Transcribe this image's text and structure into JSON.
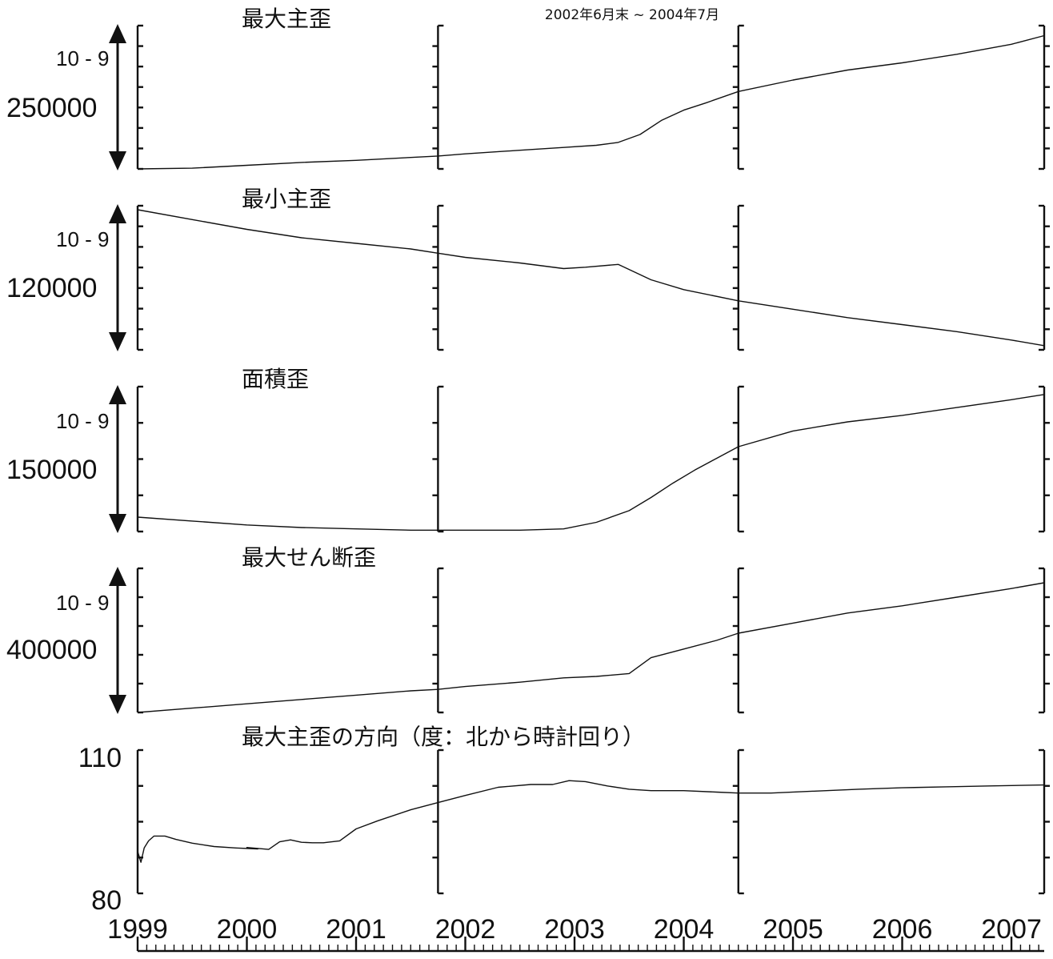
{
  "chart_data": {
    "type": "line",
    "title": "",
    "annotation": "2002年6月末 ~ 2004年7月",
    "x_axis": {
      "tick_labels": [
        "1999",
        "2000",
        "2001",
        "2002",
        "2003",
        "2004",
        "2005",
        "2006",
        "2007"
      ],
      "range": [
        1999.0,
        2007.3
      ]
    },
    "vertical_markers": [
      2001.75,
      2004.5
    ],
    "panels": [
      {
        "title": "最大主歪",
        "unit": "10 - 9",
        "scale_value": "250000",
        "x": [
          1999.0,
          1999.5,
          2000.0,
          2000.5,
          2001.0,
          2001.5,
          2001.75,
          2002.0,
          2002.5,
          2002.9,
          2003.2,
          2003.4,
          2003.6,
          2003.8,
          2004.0,
          2004.2,
          2004.5,
          2005.0,
          2005.5,
          2006.0,
          2006.5,
          2007.0,
          2007.3
        ],
        "values": [
          0.0,
          0.005,
          0.025,
          0.045,
          0.06,
          0.08,
          0.09,
          0.105,
          0.13,
          0.15,
          0.165,
          0.185,
          0.24,
          0.34,
          0.41,
          0.46,
          0.54,
          0.62,
          0.69,
          0.74,
          0.8,
          0.87,
          0.93
        ]
      },
      {
        "title": "最小主歪",
        "unit": "10 - 9",
        "scale_value": "120000",
        "x": [
          1999.0,
          1999.5,
          2000.0,
          2000.5,
          2001.0,
          2001.5,
          2001.75,
          2002.0,
          2002.5,
          2002.9,
          2003.1,
          2003.4,
          2003.7,
          2004.0,
          2004.5,
          2005.0,
          2005.5,
          2006.0,
          2006.5,
          2007.0,
          2007.3
        ],
        "values": [
          0.0,
          -0.07,
          -0.14,
          -0.2,
          -0.24,
          -0.28,
          -0.31,
          -0.34,
          -0.38,
          -0.42,
          -0.41,
          -0.39,
          -0.5,
          -0.57,
          -0.65,
          -0.71,
          -0.77,
          -0.82,
          -0.87,
          -0.93,
          -0.97
        ]
      },
      {
        "title": "面積歪",
        "unit": "10 - 9",
        "scale_value": "150000",
        "x": [
          1999.0,
          1999.5,
          2000.0,
          2000.5,
          2001.0,
          2001.5,
          2002.0,
          2002.5,
          2002.9,
          2003.2,
          2003.5,
          2003.7,
          2003.9,
          2004.1,
          2004.3,
          2004.5,
          2005.0,
          2005.5,
          2006.0,
          2006.5,
          2007.0,
          2007.3
        ],
        "values": [
          0.0,
          -0.03,
          -0.06,
          -0.08,
          -0.09,
          -0.1,
          -0.1,
          -0.1,
          -0.09,
          -0.04,
          0.05,
          0.15,
          0.26,
          0.36,
          0.45,
          0.54,
          0.66,
          0.73,
          0.78,
          0.84,
          0.9,
          0.94
        ]
      },
      {
        "title": "最大せん断歪",
        "unit": "10 - 9",
        "scale_value": "400000",
        "x": [
          1999.0,
          1999.5,
          2000.0,
          2000.5,
          2001.0,
          2001.5,
          2001.75,
          2002.0,
          2002.5,
          2002.9,
          2003.2,
          2003.5,
          2003.7,
          2004.0,
          2004.3,
          2004.5,
          2005.0,
          2005.5,
          2006.0,
          2006.5,
          2007.0,
          2007.3
        ],
        "values": [
          0.0,
          0.03,
          0.06,
          0.09,
          0.12,
          0.15,
          0.16,
          0.18,
          0.21,
          0.24,
          0.25,
          0.27,
          0.38,
          0.44,
          0.5,
          0.55,
          0.62,
          0.69,
          0.74,
          0.8,
          0.86,
          0.9
        ]
      },
      {
        "title": "最大主歪の方向（度：北から時計回り）",
        "y_tick_labels": [
          "110",
          "80"
        ],
        "ylim": [
          80,
          110
        ],
        "x": [
          1999.0,
          1999.03,
          1999.06,
          1999.1,
          1999.15,
          1999.25,
          1999.35,
          1999.5,
          1999.7,
          1999.9,
          2000.1,
          2000.0,
          2000.2,
          2000.3,
          2000.4,
          2000.5,
          2000.6,
          2000.7,
          2000.85,
          2001.0,
          2001.2,
          2001.5,
          2001.75,
          2002.0,
          2002.3,
          2002.6,
          2002.8,
          2002.95,
          2003.1,
          2003.3,
          2003.5,
          2003.7,
          2004.0,
          2004.3,
          2004.5,
          2004.8,
          2005.2,
          2005.6,
          2006.0,
          2006.4,
          2006.8,
          2007.3
        ],
        "values": [
          88.8,
          86.5,
          89.5,
          91.0,
          92.0,
          92.0,
          91.3,
          90.5,
          89.8,
          89.5,
          89.3,
          89.6,
          89.2,
          90.8,
          91.2,
          90.7,
          90.6,
          90.6,
          91.0,
          93.5,
          95.2,
          97.5,
          99.0,
          100.5,
          102.2,
          102.8,
          102.8,
          103.6,
          103.4,
          102.5,
          101.8,
          101.5,
          101.5,
          101.2,
          101.0,
          101.0,
          101.4,
          101.8,
          102.1,
          102.3,
          102.5,
          102.7
        ]
      }
    ]
  }
}
